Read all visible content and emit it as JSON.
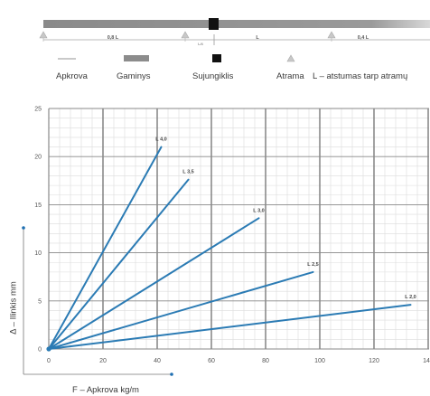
{
  "diagram": {
    "segment_labels": [
      "0,8 L",
      "L",
      "0,4 L"
    ],
    "joint_label": "L/4"
  },
  "legend": {
    "load": "Apkrova",
    "product": "Gaminys",
    "connector": "Sujungiklis",
    "support": "Atrama",
    "span_note": "L – atstumas tarp atramų"
  },
  "colors": {
    "line": "#2b7bb4",
    "beam": "#8c8c8c",
    "connector": "#111111",
    "grid_major": "#8a8a8a",
    "grid_minor": "#dcdcdc",
    "axis_arrow": "#1f6fb2"
  },
  "chart_data": {
    "type": "line",
    "xlabel": "F – Apkrova kg/m",
    "ylabel": "Δ – Ilinkis mm",
    "xlim": [
      0,
      140
    ],
    "ylim": [
      0,
      25
    ],
    "xticks": [
      0,
      20,
      40,
      60,
      80,
      100,
      120,
      140
    ],
    "yticks": [
      0,
      5,
      10,
      15,
      20,
      25
    ],
    "grid": true,
    "series": [
      {
        "name": "L 4,0",
        "points": [
          [
            0,
            0
          ],
          [
            41.5,
            21.0
          ]
        ]
      },
      {
        "name": "L 3,5",
        "points": [
          [
            0,
            0
          ],
          [
            51.5,
            17.6
          ]
        ]
      },
      {
        "name": "L 3,0",
        "points": [
          [
            0,
            0
          ],
          [
            77.5,
            13.6
          ]
        ]
      },
      {
        "name": "L 2,5",
        "points": [
          [
            0,
            0
          ],
          [
            97.5,
            8.0
          ]
        ]
      },
      {
        "name": "L 2,0",
        "points": [
          [
            0,
            0
          ],
          [
            133.5,
            4.6
          ]
        ]
      }
    ]
  }
}
